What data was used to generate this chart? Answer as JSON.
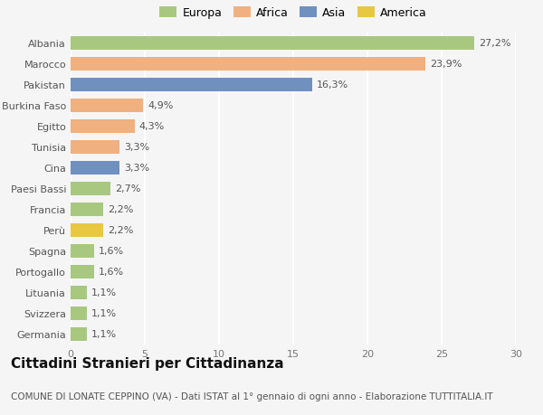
{
  "categories": [
    "Albania",
    "Marocco",
    "Pakistan",
    "Burkina Faso",
    "Egitto",
    "Tunisia",
    "Cina",
    "Paesi Bassi",
    "Francia",
    "Perù",
    "Spagna",
    "Portogallo",
    "Lituania",
    "Svizzera",
    "Germania"
  ],
  "values": [
    27.2,
    23.9,
    16.3,
    4.9,
    4.3,
    3.3,
    3.3,
    2.7,
    2.2,
    2.2,
    1.6,
    1.6,
    1.1,
    1.1,
    1.1
  ],
  "labels": [
    "27,2%",
    "23,9%",
    "16,3%",
    "4,9%",
    "4,3%",
    "3,3%",
    "3,3%",
    "2,7%",
    "2,2%",
    "2,2%",
    "1,6%",
    "1,6%",
    "1,1%",
    "1,1%",
    "1,1%"
  ],
  "colors": [
    "#a8c880",
    "#f0b080",
    "#7090c0",
    "#f0b080",
    "#f0b080",
    "#f0b080",
    "#7090c0",
    "#a8c880",
    "#a8c880",
    "#e8c840",
    "#a8c880",
    "#a8c880",
    "#a8c880",
    "#a8c880",
    "#a8c880"
  ],
  "legend": [
    {
      "label": "Europa",
      "color": "#a8c880"
    },
    {
      "label": "Africa",
      "color": "#f0b080"
    },
    {
      "label": "Asia",
      "color": "#7090c0"
    },
    {
      "label": "America",
      "color": "#e8c840"
    }
  ],
  "xlim": [
    0,
    30
  ],
  "xticks": [
    0,
    5,
    10,
    15,
    20,
    25,
    30
  ],
  "title": "Cittadini Stranieri per Cittadinanza",
  "subtitle": "COMUNE DI LONATE CEPPINO (VA) - Dati ISTAT al 1° gennaio di ogni anno - Elaborazione TUTTITALIA.IT",
  "background_color": "#f5f5f5",
  "grid_color": "#ffffff",
  "bar_height": 0.65,
  "label_fontsize": 8,
  "tick_fontsize": 8,
  "ytick_fontsize": 8,
  "title_fontsize": 11,
  "subtitle_fontsize": 7.5,
  "legend_fontsize": 9
}
